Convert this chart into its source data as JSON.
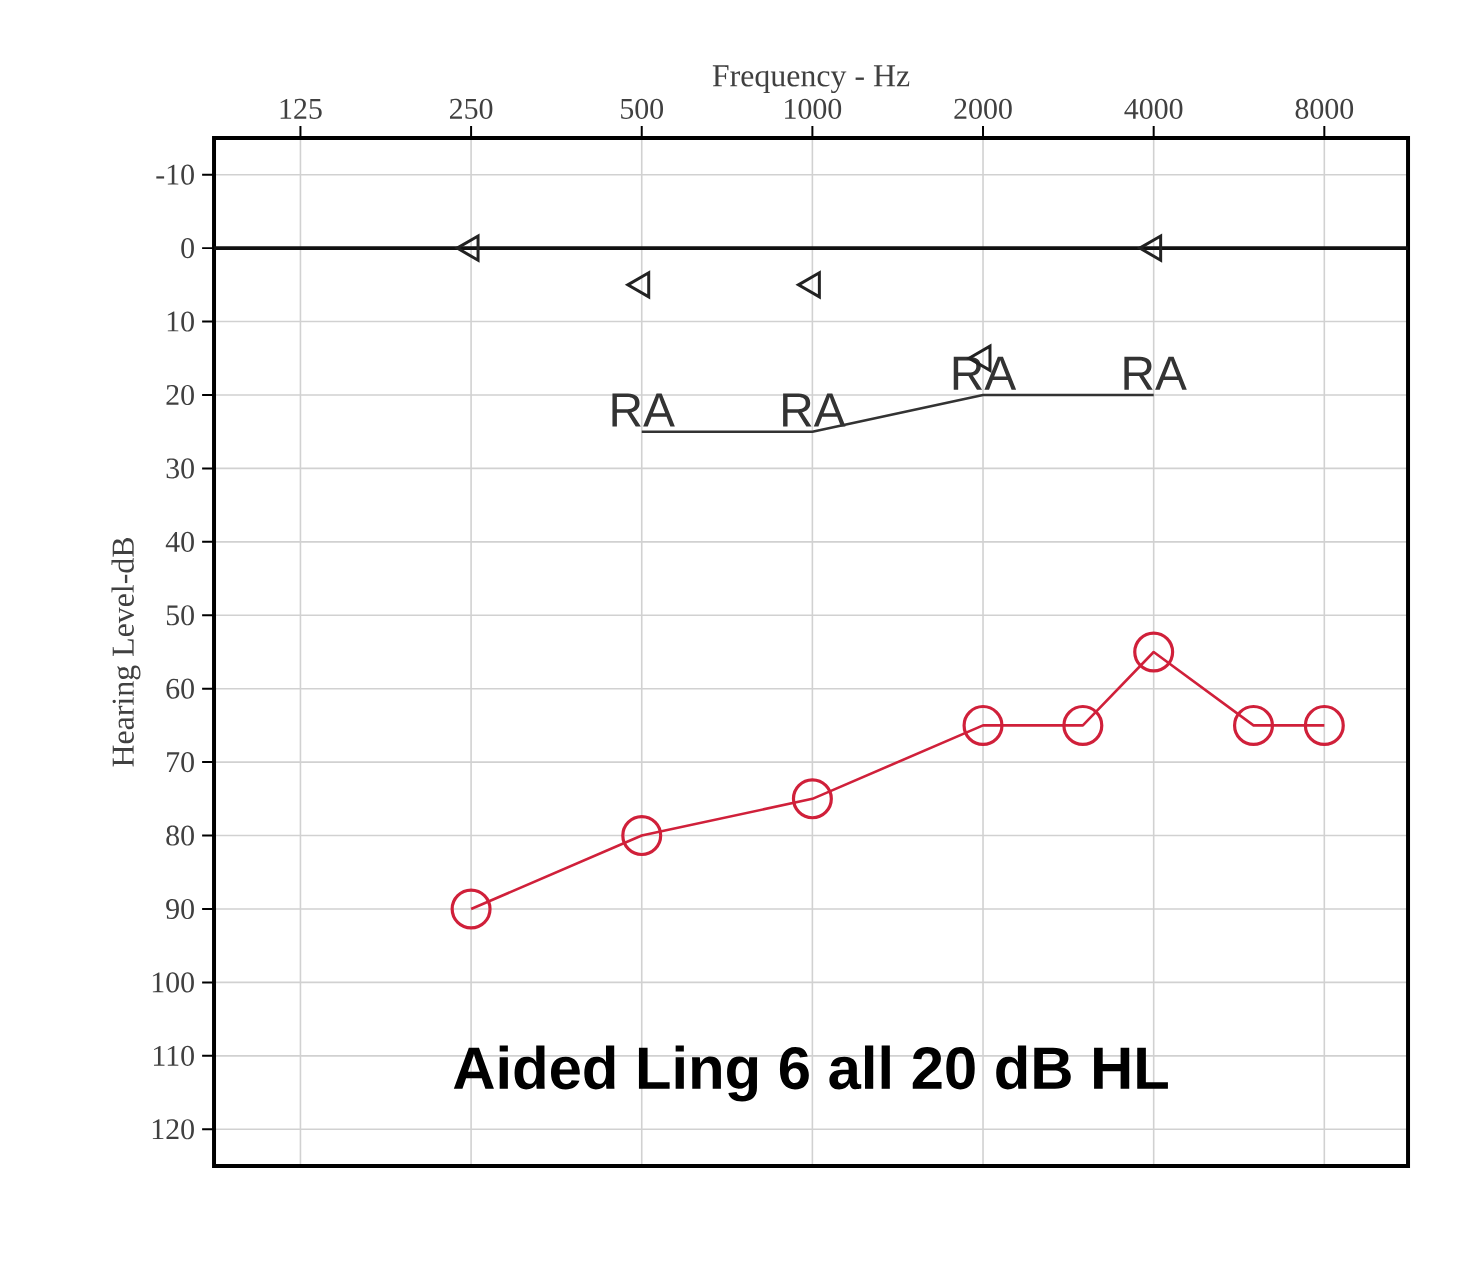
{
  "chart_data": {
    "type": "line",
    "xlabel": "Frequency - Hz",
    "ylabel": "Hearing Level-dB",
    "log": "x",
    "grid": true,
    "xlim": [
      88,
      11240
    ],
    "xticks": [
      125,
      250,
      500,
      1000,
      2000,
      4000,
      8000
    ],
    "ylim": [
      125,
      -15
    ],
    "yticks": [
      -10,
      0,
      10,
      20,
      30,
      40,
      50,
      60,
      70,
      80,
      90,
      100,
      110,
      120
    ],
    "series": [
      {
        "type": "line",
        "color": "#d0203a",
        "marker": "circle",
        "x": [
          250,
          500,
          1000,
          2000,
          3000,
          4000,
          6000,
          8000
        ],
        "values": [
          90,
          80,
          75,
          65,
          65,
          55,
          65,
          65
        ]
      },
      {
        "type": "line",
        "name": "RA",
        "color": "#333333",
        "marker": "none",
        "x": [
          500,
          1000,
          2000,
          4000
        ],
        "values": [
          25,
          25,
          20,
          20
        ]
      },
      {
        "type": "scatter",
        "color": "#222222",
        "marker": "triangle",
        "x": [
          250,
          500,
          1000,
          2000,
          4000
        ],
        "values": [
          0,
          5,
          5,
          15,
          0
        ]
      }
    ],
    "ref_lines": [
      {
        "axis": "y",
        "value": 0,
        "color": "#111111"
      }
    ],
    "annotations": [
      "Aided Ling 6  all 20 dB HL"
    ]
  }
}
